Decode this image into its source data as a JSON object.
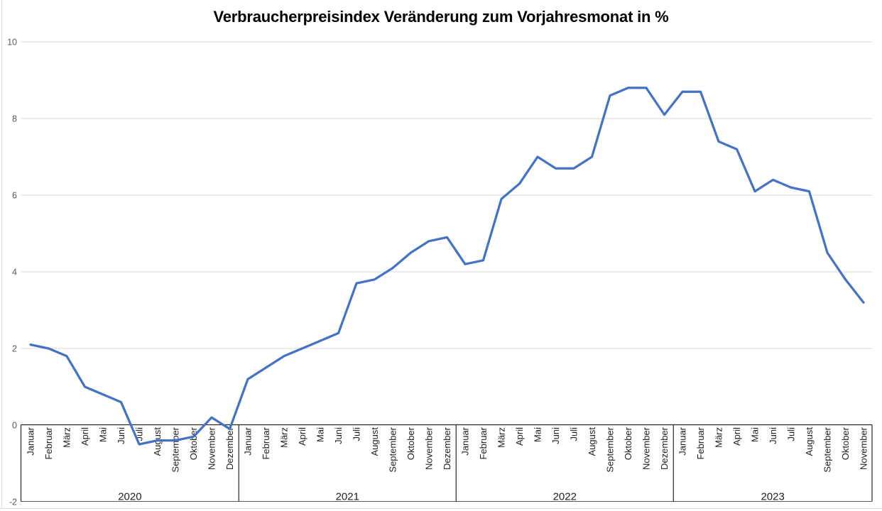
{
  "chart_data": {
    "type": "line",
    "title": "Verbraucherpreisindex Veränderung zum Vorjahresmonat in %",
    "xlabel": "",
    "ylabel": "",
    "ylim": [
      -2,
      10
    ],
    "yticks": [
      10,
      8,
      6,
      4,
      2,
      0,
      -2
    ],
    "grid": "horizontal-light",
    "legend": "none",
    "line_color": "#4472C4",
    "colors": {
      "gridline": "#D9D9D9",
      "axis_box": "#262626",
      "bottom_rule": "#595959",
      "y_tick_label": "#595959",
      "category_label": "#1f1f1f",
      "frame_line": "#DCDCDC"
    },
    "groups": [
      {
        "year": "2020",
        "months": [
          "Januar",
          "Februar",
          "März",
          "April",
          "Mai",
          "Juni",
          "Juli",
          "August",
          "September",
          "Oktober",
          "November",
          "Dezember"
        ],
        "values": [
          2.1,
          2.0,
          1.8,
          1.0,
          0.8,
          0.6,
          -0.5,
          -0.4,
          -0.4,
          -0.3,
          0.2,
          -0.1
        ]
      },
      {
        "year": "2021",
        "months": [
          "Januar",
          "Februar",
          "März",
          "April",
          "Mai",
          "Juni",
          "Juli",
          "August",
          "September",
          "Oktober",
          "November",
          "Dezember"
        ],
        "values": [
          1.2,
          1.5,
          1.8,
          2.0,
          2.2,
          2.4,
          3.7,
          3.8,
          4.1,
          4.5,
          4.8,
          4.9
        ]
      },
      {
        "year": "2022",
        "months": [
          "Januar",
          "Februar",
          "März",
          "April",
          "Mai",
          "Juni",
          "Juli",
          "August",
          "September",
          "Oktober",
          "November",
          "Dezember"
        ],
        "values": [
          4.2,
          4.3,
          5.9,
          6.3,
          7.0,
          6.7,
          6.7,
          7.0,
          8.6,
          8.8,
          8.8,
          8.1
        ]
      },
      {
        "year": "2023",
        "months": [
          "Januar",
          "Februar",
          "März",
          "April",
          "Mai",
          "Juni",
          "Juli",
          "August",
          "September",
          "Oktober",
          "November"
        ],
        "values": [
          8.7,
          8.7,
          7.4,
          7.2,
          6.1,
          6.4,
          6.2,
          6.1,
          4.5,
          3.8,
          3.2
        ]
      }
    ]
  }
}
